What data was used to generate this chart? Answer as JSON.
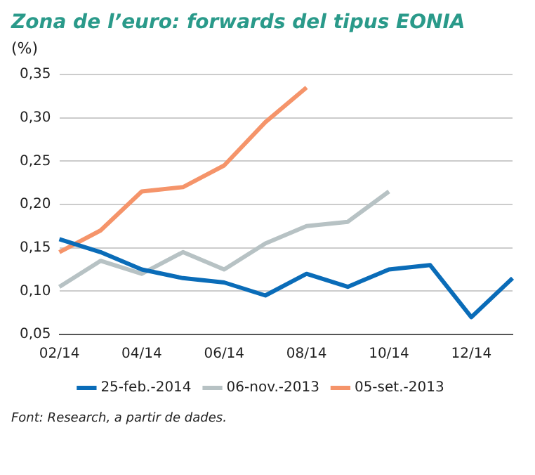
{
  "chart_data": {
    "type": "line",
    "title": "Zona de l’euro: forwards del tipus EONIA",
    "ylabel": "(%)",
    "categories": [
      "02/14",
      null,
      "04/14",
      null,
      "06/14",
      null,
      "08/14",
      null,
      "10/14",
      null,
      "12/14",
      null
    ],
    "series": [
      {
        "name": "25-feb.-2014",
        "color": "#0a6cb8",
        "values": [
          0.16,
          0.145,
          0.125,
          0.115,
          0.11,
          0.095,
          0.12,
          0.105,
          0.125,
          0.13,
          0.07,
          0.115
        ]
      },
      {
        "name": "06-nov.-2013",
        "color": "#b7c2c4",
        "values": [
          0.105,
          0.135,
          0.12,
          0.145,
          0.125,
          0.155,
          0.175,
          0.18,
          0.215,
          null,
          null,
          null
        ]
      },
      {
        "name": "05-set.-2013",
        "color": "#f5946a",
        "values": [
          0.145,
          0.17,
          0.215,
          0.22,
          0.245,
          0.295,
          0.335,
          null,
          null,
          null,
          null,
          null
        ]
      }
    ],
    "ylim": [
      0.05,
      0.35
    ],
    "yticks": [
      {
        "value": 0.05,
        "label": "0,05"
      },
      {
        "value": 0.1,
        "label": "0,10"
      },
      {
        "value": 0.15,
        "label": "0,15"
      },
      {
        "value": 0.2,
        "label": "0,20"
      },
      {
        "value": 0.25,
        "label": "0,25"
      },
      {
        "value": 0.3,
        "label": "0,30"
      },
      {
        "value": 0.35,
        "label": "0,35"
      }
    ],
    "grid": "y",
    "legend": "bottom",
    "marker": "none",
    "line_style": "solid",
    "annotations": [
      "Font: Research, a partir de dades."
    ]
  }
}
